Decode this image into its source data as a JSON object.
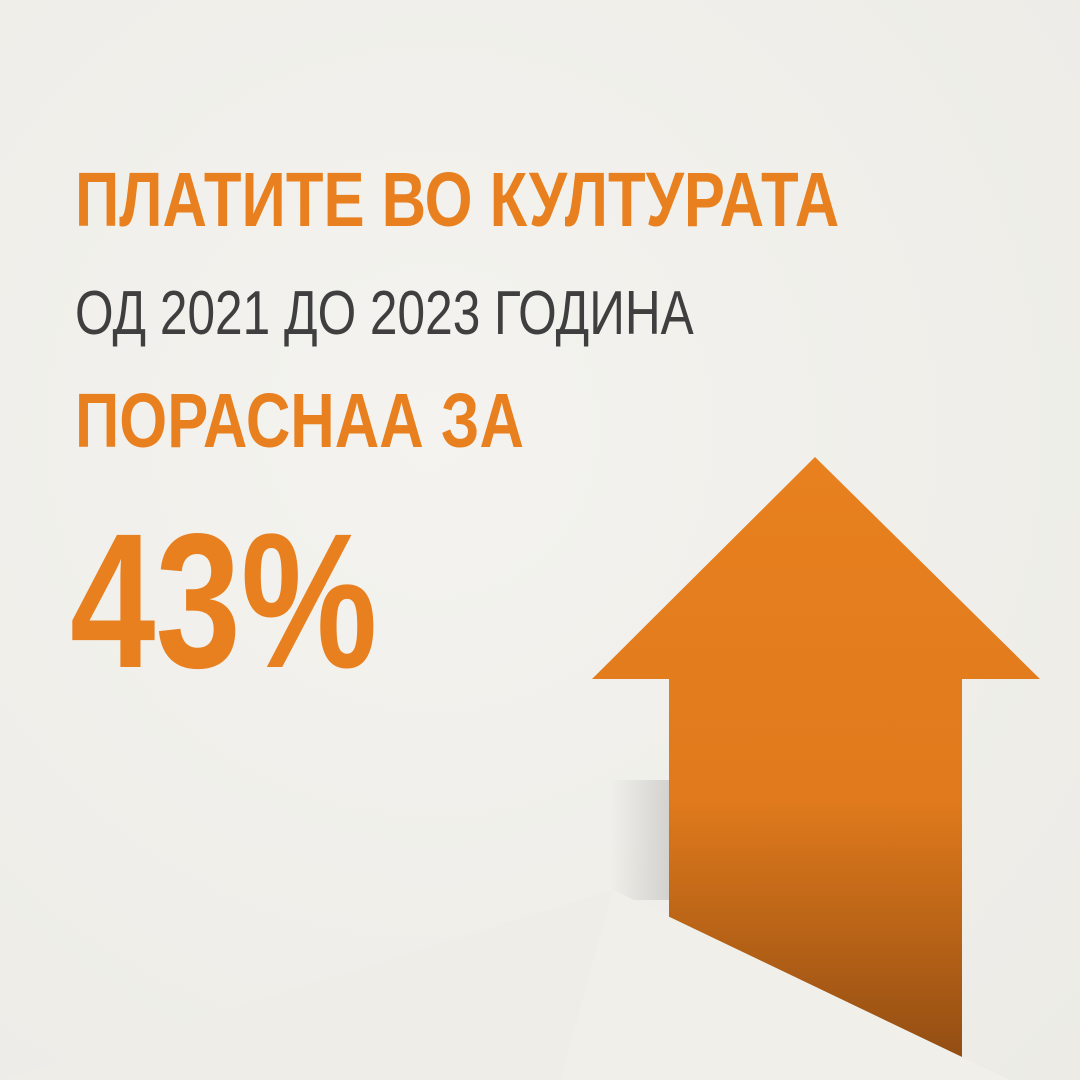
{
  "headline": {
    "line1": "ПЛАТИТЕ ВО КУЛТУРАТА",
    "line2": "ОД 2021 ДО 2023 ГОДИНА",
    "line3": "ПОРАСНАА ЗА",
    "value": "43%"
  },
  "graphic": {
    "icon": "arrow-up-icon",
    "direction": "up"
  },
  "colors": {
    "accent": "#e8801f",
    "text_dark": "#3f3f3f",
    "background": "#efeeea"
  }
}
